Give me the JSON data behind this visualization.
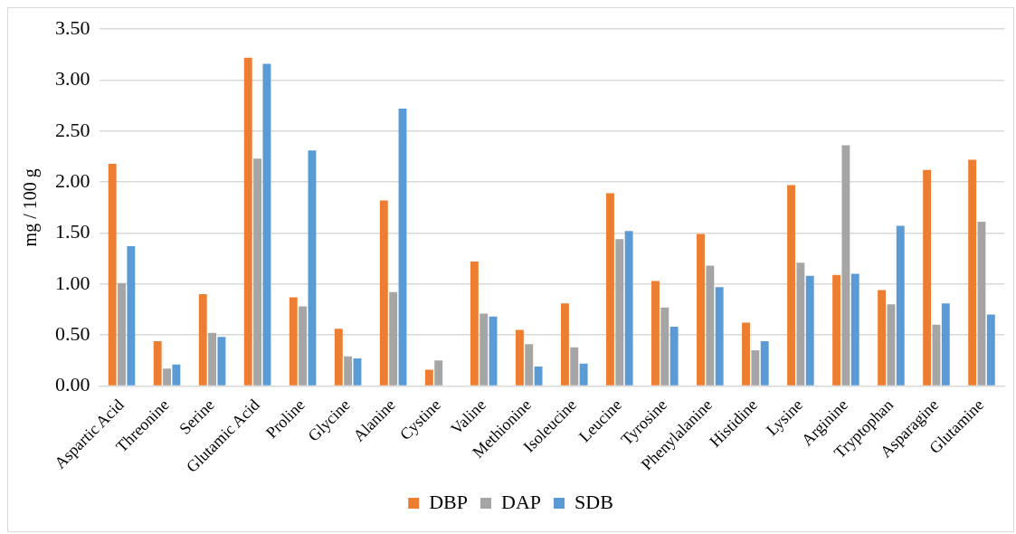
{
  "chart_data": {
    "type": "bar",
    "ylabel": "mg / 100 g",
    "categories": [
      "Aspartic Acid",
      "Threonine",
      "Serine",
      "Glutamic Acid",
      "Proline",
      "Glycine",
      "Alanine",
      "Cystine",
      "Valine",
      "Methionine",
      "Isoleucine",
      "Leucine",
      "Tyrosine",
      "Phenylalanine",
      "Histidine",
      "Lysine",
      "Arginine",
      "Tryptophan",
      "Asparagine",
      "Glutamine"
    ],
    "series": [
      {
        "name": "DBP",
        "color": "#ed7d31",
        "values": [
          2.18,
          0.44,
          0.9,
          3.22,
          0.87,
          0.56,
          1.82,
          0.16,
          1.22,
          0.55,
          0.81,
          1.89,
          1.03,
          1.49,
          0.62,
          1.97,
          1.09,
          0.94,
          2.12,
          2.22
        ]
      },
      {
        "name": "DAP",
        "color": "#a5a5a5",
        "values": [
          1.01,
          0.17,
          0.52,
          2.23,
          0.78,
          0.29,
          0.92,
          0.25,
          0.71,
          0.41,
          0.38,
          1.44,
          0.77,
          1.18,
          0.35,
          1.21,
          2.36,
          0.8,
          0.6,
          1.61
        ]
      },
      {
        "name": "SDB",
        "color": "#5b9bd5",
        "values": [
          1.37,
          0.21,
          0.48,
          3.16,
          2.31,
          0.27,
          2.72,
          null,
          0.68,
          0.19,
          0.22,
          1.52,
          0.58,
          0.97,
          0.44,
          1.08,
          1.1,
          1.57,
          0.81,
          0.7
        ]
      }
    ],
    "ylim": [
      0,
      3.5
    ],
    "yticks": [
      {
        "value": 0,
        "label": "0.00"
      },
      {
        "value": 0.5,
        "label": "0.50"
      },
      {
        "value": 1,
        "label": "1.00"
      },
      {
        "value": 1.5,
        "label": "1.50"
      },
      {
        "value": 2,
        "label": "2.00"
      },
      {
        "value": 2.5,
        "label": "2.50"
      },
      {
        "value": 3,
        "label": "3.00"
      },
      {
        "value": 3.5,
        "label": "3.50"
      }
    ],
    "grid": "y",
    "legend": "bottom"
  }
}
